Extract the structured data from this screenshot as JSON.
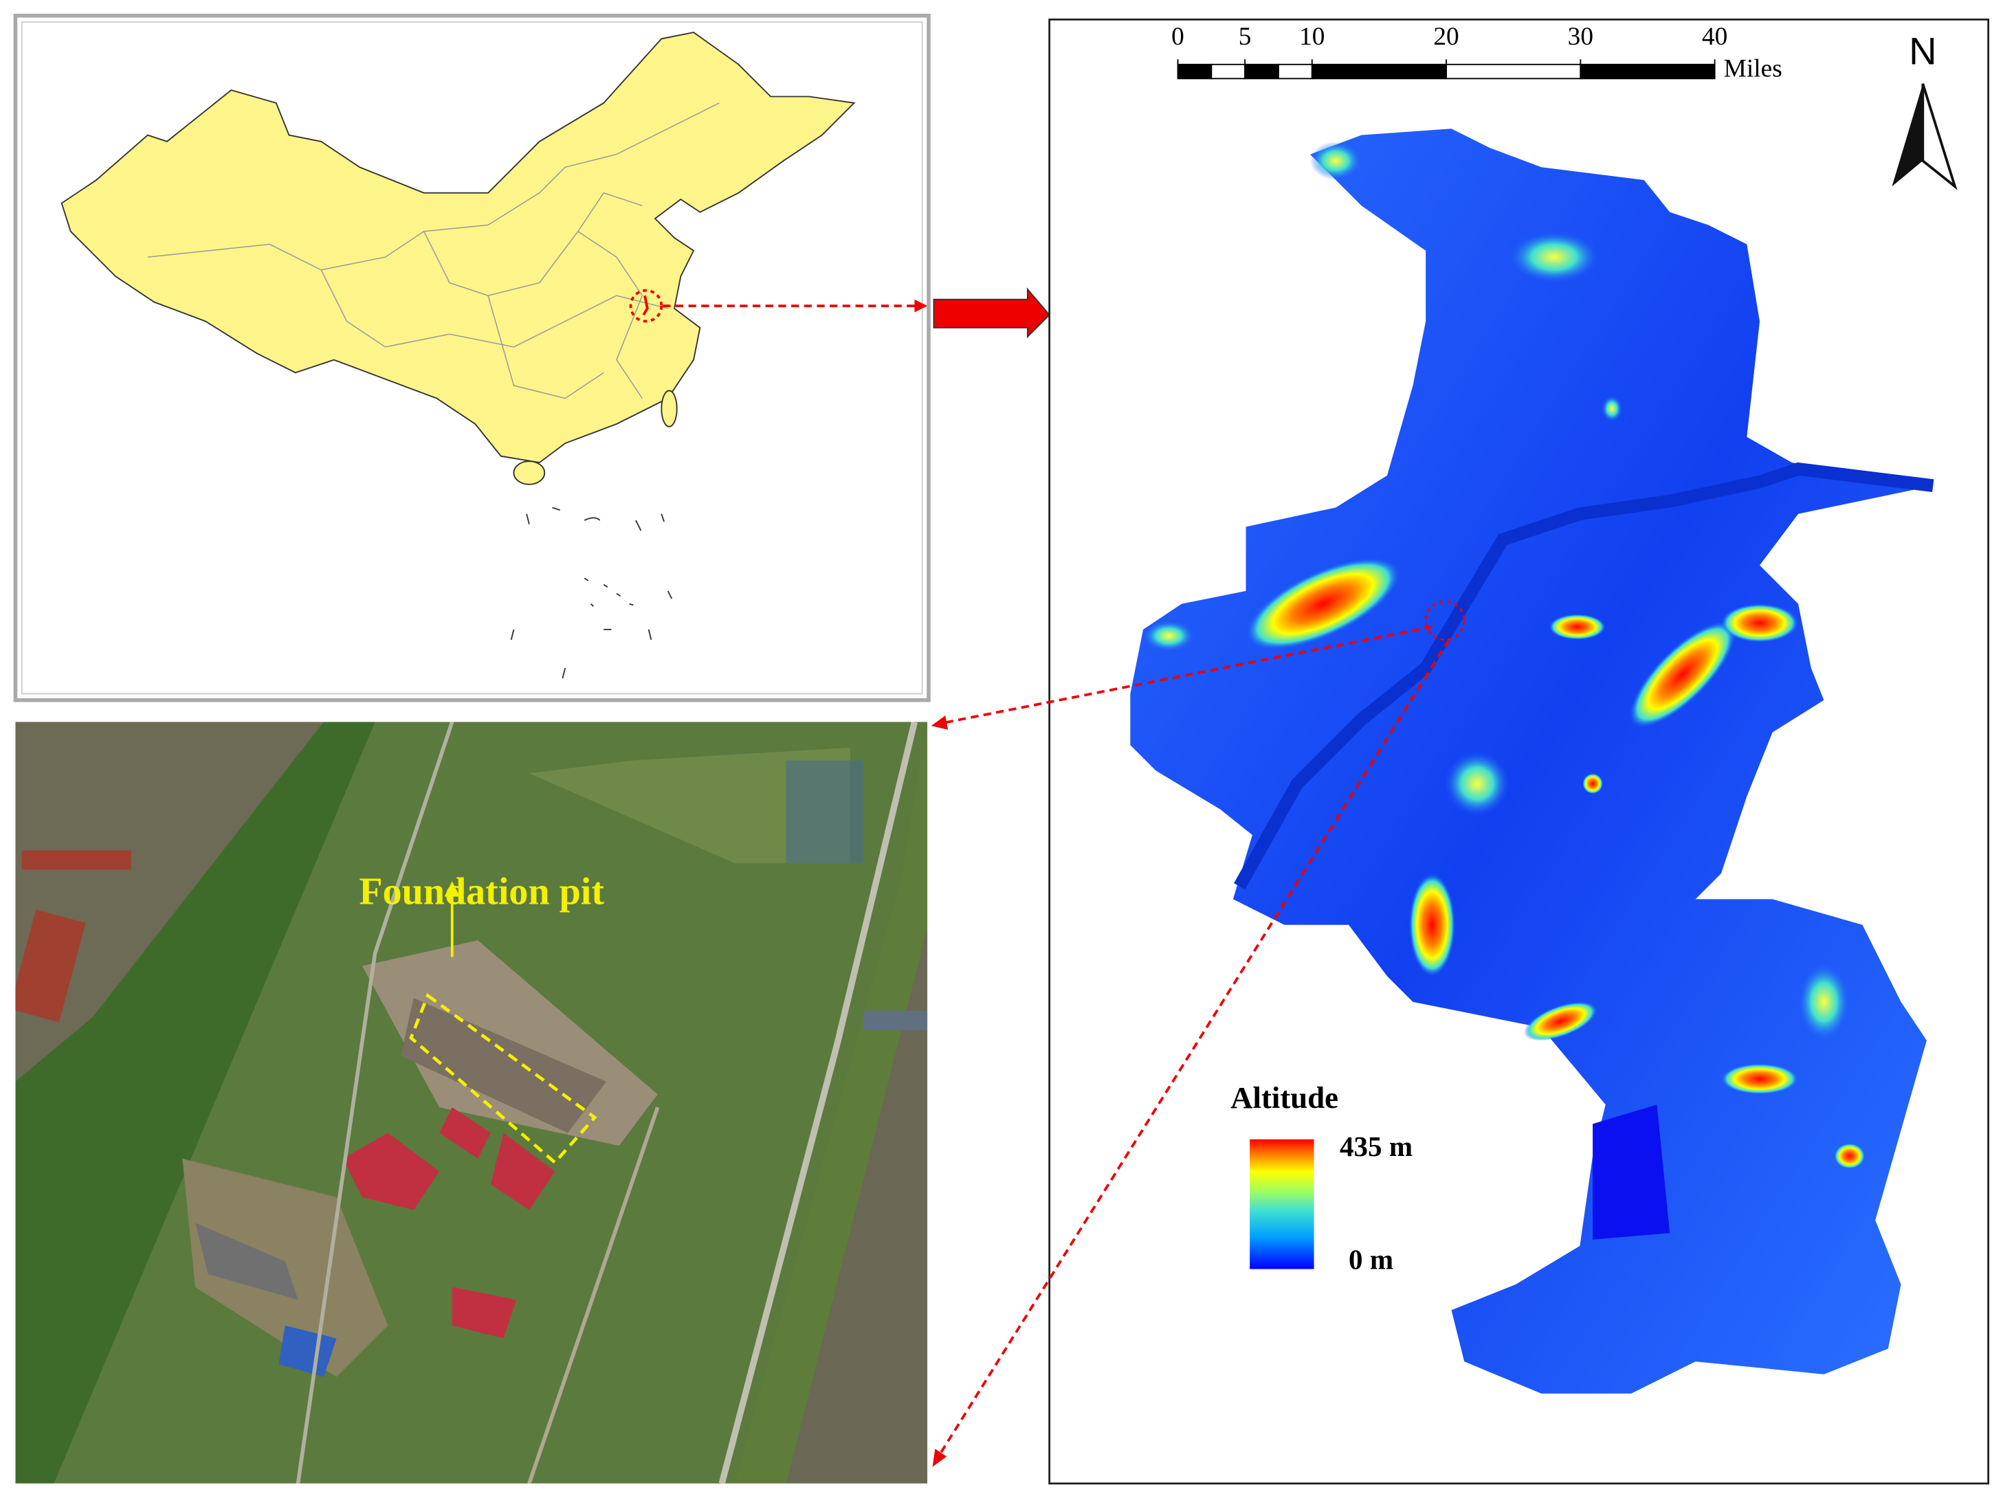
{
  "scale_bar": {
    "ticks": [
      0,
      5,
      10,
      20,
      30,
      40
    ],
    "unit": "Miles"
  },
  "north_arrow": "N",
  "legend": {
    "title": "Altitude",
    "max": "435 m",
    "min": "0 m"
  },
  "annotation": "Foundation pit"
}
